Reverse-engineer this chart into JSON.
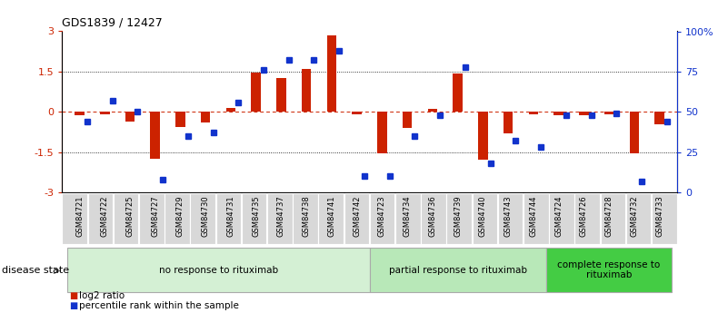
{
  "title": "GDS1839 / 12427",
  "samples": [
    "GSM84721",
    "GSM84722",
    "GSM84725",
    "GSM84727",
    "GSM84729",
    "GSM84730",
    "GSM84731",
    "GSM84735",
    "GSM84737",
    "GSM84738",
    "GSM84741",
    "GSM84742",
    "GSM84723",
    "GSM84734",
    "GSM84736",
    "GSM84739",
    "GSM84740",
    "GSM84743",
    "GSM84744",
    "GSM84724",
    "GSM84726",
    "GSM84728",
    "GSM84732",
    "GSM84733"
  ],
  "log2_ratio": [
    -0.12,
    -0.08,
    -0.35,
    -1.75,
    -0.55,
    -0.4,
    0.15,
    1.45,
    1.25,
    1.6,
    2.85,
    -0.1,
    -1.55,
    -0.6,
    0.1,
    1.42,
    -1.78,
    -0.8,
    -0.1,
    -0.12,
    -0.12,
    -0.1,
    -1.55,
    -0.45
  ],
  "percentile": [
    44,
    57,
    50,
    8,
    35,
    37,
    56,
    76,
    82,
    82,
    88,
    10,
    10,
    35,
    48,
    78,
    18,
    32,
    28,
    48,
    48,
    49,
    7,
    44
  ],
  "group_labels": [
    "no response to rituximab",
    "partial response to rituximab",
    "complete response to\nrituximab"
  ],
  "group_starts": [
    0,
    12,
    19
  ],
  "group_ends": [
    12,
    19,
    24
  ],
  "group_colors": [
    "#d4f0d4",
    "#b8e8b8",
    "#44cc44"
  ],
  "bar_color_red": "#cc2200",
  "bar_color_blue": "#1133cc",
  "yticks_left": [
    -3,
    -1.5,
    0,
    1.5,
    3
  ],
  "yticks_right_labels": [
    "0",
    "25",
    "50",
    "75",
    "100%"
  ],
  "ylim": [
    -3,
    3
  ],
  "bg_color": "#ffffff"
}
